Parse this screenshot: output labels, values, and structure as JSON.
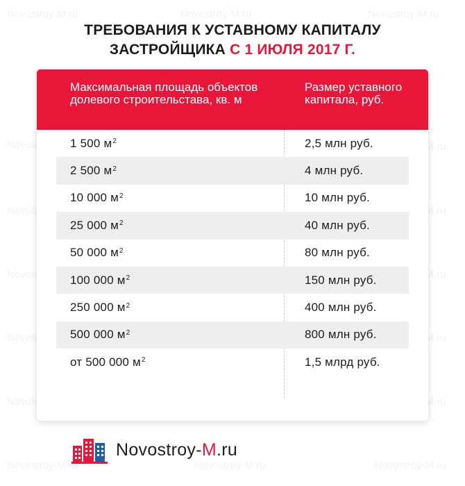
{
  "title": {
    "line1": "ТРЕБОВАНИЯ К УСТАВНОМУ КАПИТАЛУ",
    "line2_prefix": "ЗАСТРОЙЩИКА",
    "line2_accent": "С 1 ИЮЛЯ 2017 Г."
  },
  "table": {
    "header_area": "Максимальная площадь объектов долевого строительстава, кв. м",
    "header_capital": "Размер уставного капитала, руб.",
    "unit_superscript": "2",
    "rows": [
      {
        "area": "1 500 м",
        "capital": "2,5 млн руб."
      },
      {
        "area": "2 500 м",
        "capital": "4 млн руб."
      },
      {
        "area": "10 000 м",
        "capital": "10 млн руб."
      },
      {
        "area": "25 000 м",
        "capital": "40 млн руб."
      },
      {
        "area": "50 000 м",
        "capital": "80 млн руб."
      },
      {
        "area": "100 000 м",
        "capital": "150 млн руб."
      },
      {
        "area": "250 000 м",
        "capital": "400 млн руб."
      },
      {
        "area": "500 000 м",
        "capital": "800 млн руб."
      },
      {
        "area": "от 500 000 м",
        "capital": "1,5 млрд руб."
      }
    ]
  },
  "logo": {
    "text_prefix": "Novostroy-",
    "text_accent": "M",
    "text_suffix": ".ru"
  },
  "watermark": "Novostroy-M.ru",
  "colors": {
    "accent": "#e8173a",
    "row_shade": "#eeeeef",
    "text": "#1c1c1c"
  }
}
